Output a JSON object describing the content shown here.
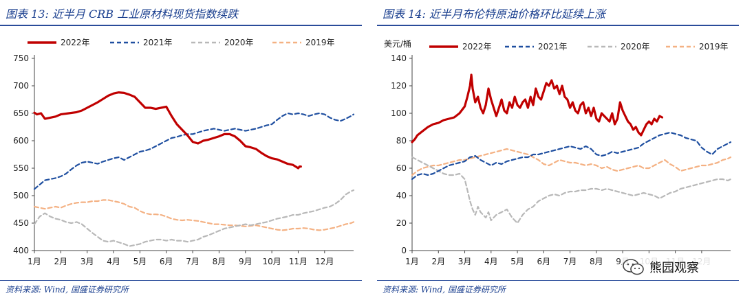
{
  "chart_data": [
    {
      "type": "line",
      "title": "图表 13:  近半月 CRB 工业原材料现货指数续跌",
      "source": "资料来源: Wind, 国盛证券研究所",
      "ylabel": "",
      "ylim": [
        400,
        750
      ],
      "yticks": [
        400,
        450,
        500,
        550,
        600,
        650,
        700,
        750
      ],
      "xticks": [
        "1月",
        "2月",
        "3月",
        "4月",
        "5月",
        "6月",
        "7月",
        "8月",
        "9月",
        "10月",
        "11月",
        "12月"
      ],
      "xlim": [
        1,
        13.1
      ],
      "series": [
        {
          "name": "2022年",
          "color": "#c00000",
          "style": "solid",
          "x": [
            1,
            1.1,
            1.25,
            1.4,
            1.6,
            1.8,
            2,
            2.3,
            2.6,
            2.8,
            3,
            3.2,
            3.4,
            3.6,
            3.8,
            4,
            4.2,
            4.4,
            4.6,
            4.8,
            5,
            5.2,
            5.4,
            5.6,
            5.8,
            6,
            6.2,
            6.4,
            6.6,
            6.8,
            7,
            7.2,
            7.4,
            7.6,
            7.8,
            8,
            8.2,
            8.4,
            8.6,
            8.8,
            9,
            9.2,
            9.4,
            9.6,
            9.8,
            10,
            10.2,
            10.4,
            10.6,
            10.8,
            11,
            11.05,
            11.1
          ],
          "values": [
            651,
            648,
            650,
            640,
            642,
            644,
            648,
            650,
            652,
            655,
            660,
            665,
            670,
            676,
            682,
            686,
            688,
            687,
            684,
            680,
            670,
            660,
            660,
            658,
            660,
            662,
            645,
            630,
            620,
            610,
            598,
            595,
            600,
            602,
            605,
            608,
            612,
            612,
            608,
            600,
            590,
            588,
            585,
            578,
            572,
            568,
            566,
            562,
            558,
            556,
            550,
            553,
            553
          ]
        },
        {
          "name": "2021年",
          "color": "#1f4fa0",
          "style": "dash",
          "x": [
            1,
            1.2,
            1.4,
            1.6,
            1.8,
            2,
            2.2,
            2.4,
            2.6,
            2.8,
            3,
            3.2,
            3.4,
            3.6,
            3.8,
            4,
            4.2,
            4.4,
            4.6,
            4.8,
            5,
            5.2,
            5.4,
            5.6,
            5.8,
            6,
            6.2,
            6.4,
            6.6,
            6.8,
            7,
            7.2,
            7.4,
            7.6,
            7.8,
            8,
            8.2,
            8.4,
            8.6,
            8.8,
            9,
            9.2,
            9.4,
            9.6,
            9.8,
            10,
            10.2,
            10.4,
            10.6,
            10.8,
            11,
            11.2,
            11.4,
            11.6,
            11.8,
            12,
            12.2,
            12.4,
            12.6,
            12.8,
            13,
            13.1
          ],
          "values": [
            512,
            520,
            528,
            530,
            532,
            535,
            540,
            548,
            555,
            560,
            562,
            560,
            558,
            562,
            565,
            568,
            570,
            565,
            570,
            575,
            580,
            582,
            585,
            590,
            595,
            600,
            605,
            607,
            610,
            612,
            612,
            615,
            618,
            620,
            622,
            620,
            618,
            620,
            622,
            620,
            618,
            620,
            622,
            625,
            628,
            630,
            638,
            645,
            650,
            648,
            650,
            648,
            645,
            648,
            650,
            648,
            642,
            638,
            636,
            640,
            645,
            648
          ]
        },
        {
          "name": "2020年",
          "color": "#b8b8b8",
          "style": "dash",
          "x": [
            1,
            1.2,
            1.4,
            1.6,
            1.8,
            2,
            2.2,
            2.4,
            2.6,
            2.8,
            3,
            3.2,
            3.4,
            3.6,
            3.8,
            4,
            4.2,
            4.4,
            4.6,
            4.8,
            5,
            5.2,
            5.4,
            5.6,
            5.8,
            6,
            6.2,
            6.4,
            6.6,
            6.8,
            7,
            7.2,
            7.4,
            7.6,
            7.8,
            8,
            8.2,
            8.4,
            8.6,
            8.8,
            9,
            9.2,
            9.4,
            9.6,
            9.8,
            10,
            10.2,
            10.4,
            10.6,
            10.8,
            11,
            11.2,
            11.4,
            11.6,
            11.8,
            12,
            12.2,
            12.4,
            12.6,
            12.8,
            13,
            13.1
          ],
          "values": [
            448,
            462,
            468,
            462,
            458,
            456,
            452,
            450,
            452,
            448,
            440,
            432,
            425,
            418,
            416,
            418,
            415,
            412,
            408,
            410,
            412,
            416,
            418,
            420,
            420,
            418,
            420,
            418,
            418,
            416,
            418,
            420,
            425,
            428,
            432,
            436,
            440,
            442,
            444,
            446,
            448,
            446,
            448,
            450,
            452,
            455,
            458,
            460,
            462,
            465,
            465,
            468,
            470,
            472,
            475,
            478,
            480,
            485,
            492,
            502,
            508,
            510
          ]
        },
        {
          "name": "2019年",
          "color": "#f4b183",
          "style": "dash",
          "x": [
            1,
            1.2,
            1.4,
            1.6,
            1.8,
            2,
            2.2,
            2.4,
            2.6,
            2.8,
            3,
            3.2,
            3.4,
            3.6,
            3.8,
            4,
            4.2,
            4.4,
            4.6,
            4.8,
            5,
            5.2,
            5.4,
            5.6,
            5.8,
            6,
            6.2,
            6.4,
            6.6,
            6.8,
            7,
            7.2,
            7.4,
            7.6,
            7.8,
            8,
            8.2,
            8.4,
            8.6,
            8.8,
            9,
            9.2,
            9.4,
            9.6,
            9.8,
            10,
            10.2,
            10.4,
            10.6,
            10.8,
            11,
            11.2,
            11.4,
            11.6,
            11.8,
            12,
            12.2,
            12.4,
            12.6,
            12.8,
            13,
            13.1
          ],
          "values": [
            480,
            478,
            476,
            478,
            480,
            478,
            482,
            485,
            487,
            488,
            488,
            490,
            490,
            492,
            492,
            490,
            488,
            485,
            480,
            478,
            472,
            468,
            466,
            466,
            465,
            462,
            458,
            456,
            455,
            456,
            455,
            454,
            452,
            450,
            448,
            448,
            447,
            446,
            446,
            445,
            444,
            445,
            446,
            444,
            442,
            440,
            438,
            437,
            438,
            440,
            440,
            441,
            440,
            438,
            437,
            438,
            440,
            442,
            445,
            448,
            450,
            452
          ]
        }
      ]
    },
    {
      "type": "line",
      "title": "图表 14:  近半月布伦特原油价格环比延续上涨",
      "source": "资料来源: Wind, 国盛证券研究所",
      "ylabel": "美元/桶",
      "ylim": [
        0,
        140
      ],
      "yticks": [
        0,
        20,
        40,
        60,
        80,
        100,
        120,
        140
      ],
      "xticks": [
        "1月",
        "2月",
        "3月",
        "4月",
        "5月",
        "6月",
        "7月",
        "8月",
        "9月",
        "10月",
        "11月",
        "12月"
      ],
      "xlim": [
        1,
        13.1
      ],
      "series": [
        {
          "name": "2022年",
          "color": "#c00000",
          "style": "solid",
          "x": [
            1,
            1.1,
            1.2,
            1.4,
            1.6,
            1.8,
            2,
            2.2,
            2.4,
            2.6,
            2.8,
            3,
            3.1,
            3.2,
            3.25,
            3.3,
            3.4,
            3.5,
            3.6,
            3.7,
            3.8,
            3.9,
            4,
            4.1,
            4.2,
            4.3,
            4.4,
            4.5,
            4.6,
            4.7,
            4.8,
            4.9,
            5,
            5.1,
            5.2,
            5.3,
            5.4,
            5.5,
            5.6,
            5.7,
            5.8,
            5.9,
            6,
            6.1,
            6.2,
            6.3,
            6.4,
            6.5,
            6.6,
            6.7,
            6.8,
            6.9,
            7,
            7.1,
            7.2,
            7.3,
            7.4,
            7.5,
            7.6,
            7.7,
            7.8,
            7.9,
            8,
            8.1,
            8.2,
            8.3,
            8.4,
            8.5,
            8.6,
            8.7,
            8.8,
            8.9,
            9,
            9.1,
            9.2,
            9.3,
            9.4,
            9.5,
            9.6,
            9.7,
            9.8,
            9.9,
            10,
            10.1,
            10.2,
            10.3,
            10.4,
            10.5
          ],
          "values": [
            79,
            81,
            84,
            87,
            90,
            92,
            93,
            95,
            96,
            97,
            100,
            105,
            112,
            120,
            128,
            118,
            108,
            112,
            104,
            100,
            106,
            118,
            110,
            104,
            98,
            104,
            110,
            102,
            100,
            108,
            104,
            112,
            106,
            104,
            108,
            110,
            104,
            112,
            106,
            118,
            112,
            110,
            116,
            122,
            120,
            124,
            118,
            120,
            114,
            120,
            112,
            110,
            104,
            108,
            102,
            100,
            106,
            108,
            100,
            104,
            98,
            104,
            96,
            94,
            100,
            98,
            96,
            94,
            100,
            92,
            96,
            108,
            102,
            98,
            94,
            92,
            88,
            90,
            86,
            84,
            88,
            92,
            94,
            92,
            96,
            94,
            98,
            97
          ]
        },
        {
          "name": "2021年",
          "color": "#1f4fa0",
          "style": "dash",
          "x": [
            1,
            1.2,
            1.4,
            1.6,
            1.8,
            2,
            2.2,
            2.4,
            2.6,
            2.8,
            3,
            3.2,
            3.4,
            3.6,
            3.8,
            4,
            4.2,
            4.4,
            4.6,
            4.8,
            5,
            5.2,
            5.4,
            5.6,
            5.8,
            6,
            6.2,
            6.4,
            6.6,
            6.8,
            7,
            7.2,
            7.4,
            7.6,
            7.8,
            8,
            8.2,
            8.4,
            8.6,
            8.8,
            9,
            9.2,
            9.4,
            9.6,
            9.8,
            10,
            10.2,
            10.4,
            10.6,
            10.8,
            11,
            11.2,
            11.4,
            11.6,
            11.8,
            12,
            12.2,
            12.4,
            12.6,
            12.8,
            13,
            13.1
          ],
          "values": [
            52,
            55,
            56,
            55,
            56,
            58,
            60,
            62,
            63,
            64,
            65,
            68,
            69,
            66,
            64,
            62,
            64,
            63,
            65,
            66,
            67,
            68,
            68,
            70,
            70,
            71,
            72,
            73,
            74,
            75,
            76,
            75,
            74,
            76,
            74,
            70,
            69,
            70,
            72,
            71,
            72,
            73,
            74,
            75,
            78,
            80,
            82,
            84,
            85,
            86,
            85,
            84,
            82,
            81,
            80,
            75,
            72,
            70,
            74,
            76,
            78,
            79
          ]
        },
        {
          "name": "2020年",
          "color": "#b8b8b8",
          "style": "dash",
          "x": [
            1,
            1.2,
            1.4,
            1.6,
            1.8,
            2,
            2.2,
            2.4,
            2.6,
            2.8,
            3,
            3.1,
            3.2,
            3.3,
            3.4,
            3.5,
            3.6,
            3.7,
            3.8,
            3.9,
            4,
            4.2,
            4.4,
            4.6,
            4.8,
            5,
            5.2,
            5.4,
            5.6,
            5.8,
            6,
            6.2,
            6.4,
            6.6,
            6.8,
            7,
            7.2,
            7.4,
            7.6,
            7.8,
            8,
            8.2,
            8.4,
            8.6,
            8.8,
            9,
            9.2,
            9.4,
            9.6,
            9.8,
            10,
            10.2,
            10.4,
            10.6,
            10.8,
            11,
            11.2,
            11.4,
            11.6,
            11.8,
            12,
            12.2,
            12.4,
            12.6,
            12.8,
            13,
            13.1
          ],
          "values": [
            68,
            66,
            64,
            62,
            60,
            58,
            56,
            55,
            55,
            56,
            52,
            44,
            36,
            30,
            26,
            32,
            28,
            26,
            24,
            28,
            22,
            26,
            28,
            30,
            24,
            20,
            26,
            30,
            32,
            36,
            38,
            40,
            41,
            40,
            42,
            43,
            43,
            44,
            44,
            45,
            45,
            44,
            45,
            44,
            43,
            42,
            41,
            40,
            41,
            42,
            41,
            40,
            38,
            40,
            42,
            43,
            45,
            46,
            47,
            48,
            49,
            50,
            51,
            52,
            52,
            51,
            52
          ]
        },
        {
          "name": "2019年",
          "color": "#f4b183",
          "style": "dash",
          "x": [
            1,
            1.2,
            1.4,
            1.6,
            1.8,
            2,
            2.2,
            2.4,
            2.6,
            2.8,
            3,
            3.2,
            3.4,
            3.6,
            3.8,
            4,
            4.2,
            4.4,
            4.6,
            4.8,
            5,
            5.2,
            5.4,
            5.6,
            5.8,
            6,
            6.2,
            6.4,
            6.6,
            6.8,
            7,
            7.2,
            7.4,
            7.6,
            7.8,
            8,
            8.2,
            8.4,
            8.6,
            8.8,
            9,
            9.2,
            9.4,
            9.6,
            9.8,
            10,
            10.2,
            10.4,
            10.6,
            10.8,
            11,
            11.2,
            11.4,
            11.6,
            11.8,
            12,
            12.2,
            12.4,
            12.6,
            12.8,
            13,
            13.1
          ],
          "values": [
            55,
            58,
            60,
            61,
            62,
            62,
            63,
            64,
            65,
            66,
            66,
            67,
            68,
            69,
            70,
            71,
            72,
            73,
            74,
            73,
            72,
            71,
            70,
            68,
            66,
            63,
            62,
            64,
            66,
            65,
            64,
            64,
            63,
            62,
            63,
            62,
            60,
            61,
            59,
            58,
            59,
            60,
            61,
            62,
            60,
            60,
            62,
            64,
            66,
            63,
            61,
            58,
            59,
            60,
            61,
            62,
            62,
            63,
            64,
            66,
            67,
            68
          ]
        }
      ]
    }
  ],
  "watermark": {
    "text": "熊园观察"
  }
}
